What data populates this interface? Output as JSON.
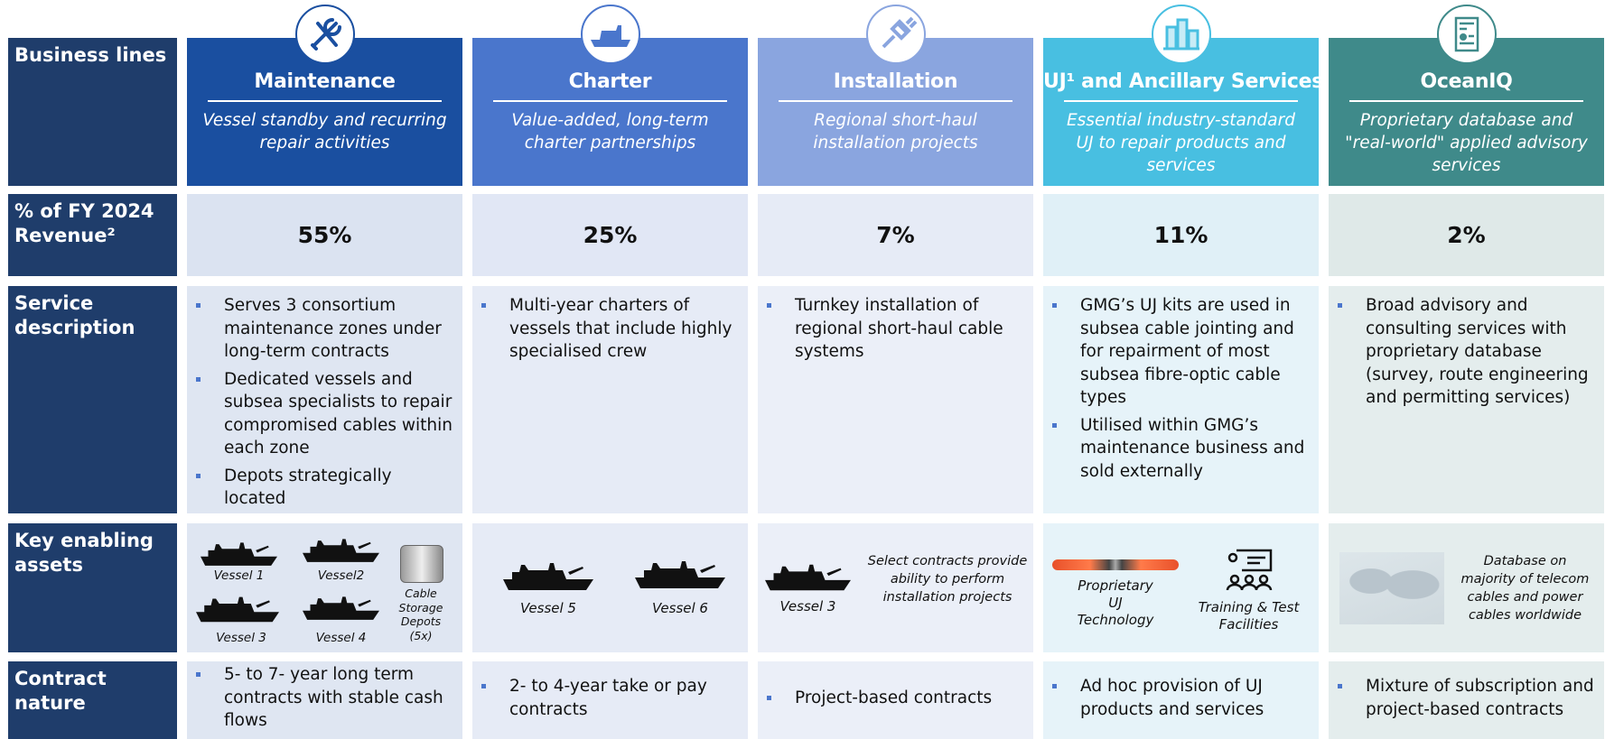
{
  "row_labels": [
    "Business lines",
    "% of FY 2024 Revenue²",
    "Service description",
    "Key enabling assets",
    "Contract nature"
  ],
  "columns": [
    {
      "title": "Maintenance",
      "subtitle": "Vessel standby and recurring repair activities",
      "revenue": "55%",
      "service": [
        "Serves 3 consortium maintenance zones under long-term contracts",
        "Dedicated vessels and subsea specialists to repair compromised cables within each zone",
        "Depots strategically located"
      ],
      "assets": [
        "Vessel 1",
        "Vessel2",
        "Vessel 3",
        "Vessel 4",
        "Cable Storage Depots (5x)"
      ],
      "contract": [
        "5- to 7- year long term contracts with stable cash flows"
      ]
    },
    {
      "title": "Charter",
      "subtitle": "Value-added, long-term charter partnerships",
      "revenue": "25%",
      "service": [
        "Multi-year charters of vessels that include highly specialised crew"
      ],
      "assets": [
        "Vessel 5",
        "Vessel 6"
      ],
      "contract": [
        "2- to 4-year take or pay contracts"
      ]
    },
    {
      "title": "Installation",
      "subtitle": "Regional short-haul installation projects",
      "revenue": "7%",
      "service": [
        "Turnkey installation of regional short-haul cable systems"
      ],
      "assets": [
        "Vessel 3",
        "Select contracts provide ability to perform installation projects"
      ],
      "contract": [
        "Project-based contracts"
      ]
    },
    {
      "title": "UJ¹ and Ancillary Services",
      "subtitle": "Essential industry-standard UJ to repair products and services",
      "revenue": "11%",
      "service": [
        "GMG’s UJ kits are used in subsea cable jointing and for repairment of most subsea fibre-optic cable types",
        "Utilised within GMG’s maintenance business and sold externally"
      ],
      "assets": [
        "Proprietary UJ Technology",
        "Training & Test Facilities"
      ],
      "contract": [
        "Ad hoc provision of UJ products and services"
      ]
    },
    {
      "title": "OceanIQ",
      "subtitle": "Proprietary database and \"real-world\" applied advisory services",
      "revenue": "2%",
      "service": [
        "Broad advisory and consulting services with proprietary database (survey, route engineering and permitting services)"
      ],
      "assets": [
        "Database on majority of telecom cables and power cables worldwide"
      ],
      "contract": [
        "Mixture of subscription and project-based contracts"
      ]
    }
  ]
}
